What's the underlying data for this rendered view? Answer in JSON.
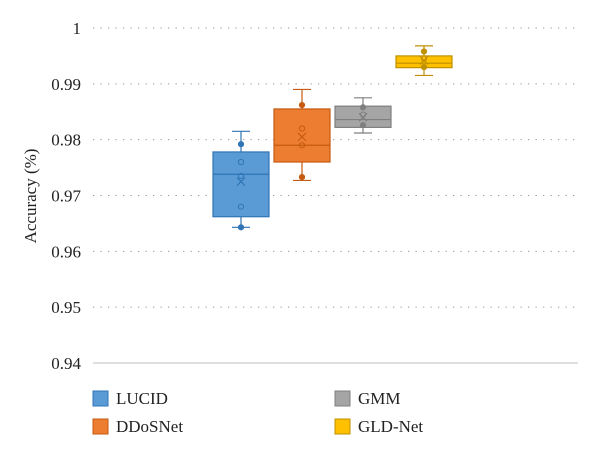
{
  "chart_data": {
    "type": "box",
    "ylabel": "Accuracy (%)",
    "ylim": [
      0.94,
      1.0
    ],
    "yticks": [
      "0.94",
      "0.95",
      "0.96",
      "0.97",
      "0.98",
      "0.99",
      "1"
    ],
    "grid": "horizontal-dotted",
    "legend_position": "bottom",
    "series": [
      {
        "name": "LUCID",
        "color": "#5B9BD5",
        "stroke": "#2F75B5",
        "min": 0.9643,
        "q1": 0.9662,
        "median": 0.9738,
        "q3": 0.9778,
        "max": 0.9815,
        "mean": 0.9725,
        "points": [
          0.9643,
          0.968,
          0.9735,
          0.976,
          0.9792
        ]
      },
      {
        "name": "DDoSNet",
        "color": "#ED7D31",
        "stroke": "#C55A11",
        "min": 0.9727,
        "q1": 0.976,
        "median": 0.979,
        "q3": 0.9855,
        "max": 0.989,
        "mean": 0.9805,
        "points": [
          0.9733,
          0.979,
          0.982,
          0.9862
        ]
      },
      {
        "name": "GMM",
        "color": "#A5A5A5",
        "stroke": "#7F7F7F",
        "min": 0.9812,
        "q1": 0.9822,
        "median": 0.9836,
        "q3": 0.986,
        "max": 0.9875,
        "mean": 0.984,
        "points": [
          0.9826,
          0.9845,
          0.9858
        ]
      },
      {
        "name": "GLD-Net",
        "color": "#FFC000",
        "stroke": "#BF9000",
        "min": 0.9915,
        "q1": 0.9929,
        "median": 0.9937,
        "q3": 0.995,
        "max": 0.9968,
        "mean": 0.9942,
        "points": [
          0.993,
          0.9945,
          0.9958
        ]
      }
    ]
  }
}
